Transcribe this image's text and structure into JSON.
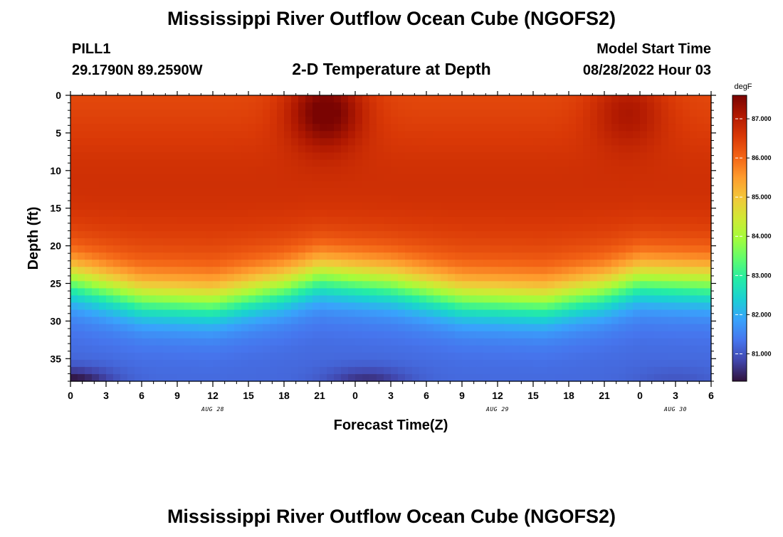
{
  "header": {
    "main_title": "Mississippi River Outflow Ocean Cube (NGOFS2)",
    "station_id": "PILL1",
    "station_coords": "29.1790N  89.2590W",
    "plot_title": "2-D Temperature at Depth",
    "model_start_label": "Model Start Time",
    "model_start_value": "08/28/2022 Hour 03"
  },
  "footer": {
    "repeated_title": "Mississippi River Outflow Ocean Cube (NGOFS2)"
  },
  "colors": {
    "colormap": [
      "#30123b",
      "#4145ab",
      "#4675ed",
      "#39a2fc",
      "#1bcfd4",
      "#24eca6",
      "#61fc6c",
      "#a4fc3b",
      "#d1e834",
      "#f3c63a",
      "#fe9b2d",
      "#f36315",
      "#d93806",
      "#b11901",
      "#7a0402"
    ]
  },
  "chart_data": {
    "type": "heatmap",
    "xlabel": "Forecast Time(Z)",
    "ylabel": "Depth (ft)",
    "xlim_hours": [
      0,
      54
    ],
    "ylim": [
      0,
      38
    ],
    "x_tick_labels": [
      "0",
      "3",
      "6",
      "9",
      "12",
      "15",
      "18",
      "21",
      "0",
      "3",
      "6",
      "9",
      "12",
      "15",
      "18",
      "21",
      "0",
      "3",
      "6"
    ],
    "y_tick_values": [
      0,
      5,
      10,
      15,
      20,
      25,
      30,
      35
    ],
    "date_labels": [
      {
        "text": "AUG 28",
        "hour": 12
      },
      {
        "text": "AUG 29",
        "hour": 36
      },
      {
        "text": "AUG 30",
        "hour": 51
      }
    ],
    "colorbar": {
      "unit": "degF",
      "min": 80.3,
      "max": 87.6,
      "ticks": [
        "81.000",
        "82.000",
        "83.000",
        "84.000",
        "85.000",
        "86.000",
        "87.000"
      ],
      "tick_values": [
        81,
        82,
        83,
        84,
        85,
        86,
        87
      ]
    },
    "grid": false,
    "legend": "colorbar-right",
    "field_description": {
      "surface_temp_degF": 86.3,
      "mixed_layer_bottom_temp_degF": 81.2,
      "thermocline_depth_ft_at_hours": [
        [
          0,
          24.5
        ],
        [
          6,
          27
        ],
        [
          12,
          27.5
        ],
        [
          18,
          25.5
        ],
        [
          21,
          24
        ],
        [
          27,
          25
        ],
        [
          33,
          27
        ],
        [
          40,
          27.5
        ],
        [
          45,
          26
        ],
        [
          48,
          24.5
        ],
        [
          54,
          25
        ]
      ],
      "warm_cores": [
        {
          "hour": 21.5,
          "depth_ft": 2,
          "degF": 87.6
        },
        {
          "hour": 47,
          "depth_ft": 2,
          "degF": 87.0
        }
      ],
      "cold_bottom_cores": [
        {
          "hour": 0,
          "depth_ft": 38,
          "degF": 80.3
        },
        {
          "hour": 25,
          "depth_ft": 38,
          "degF": 80.6
        },
        {
          "hour": 51,
          "depth_ft": 38,
          "degF": 81.0
        }
      ]
    }
  }
}
